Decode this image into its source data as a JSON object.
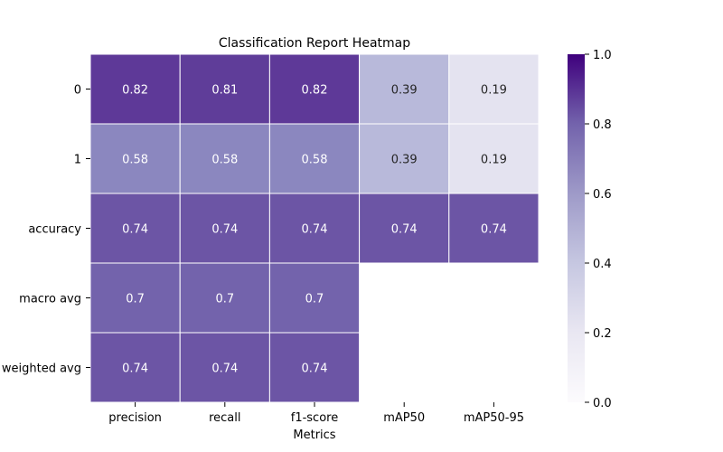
{
  "chart_data": {
    "type": "heatmap",
    "title": "Classification Report Heatmap",
    "xlabel": "Metrics",
    "ylabel": "",
    "columns": [
      "precision",
      "recall",
      "f1-score",
      "mAP50",
      "mAP50-95"
    ],
    "rows": [
      "0",
      "1",
      "accuracy",
      "macro avg",
      "weighted avg"
    ],
    "values": [
      [
        0.82,
        0.81,
        0.82,
        0.39,
        0.19
      ],
      [
        0.58,
        0.58,
        0.58,
        0.39,
        0.19
      ],
      [
        0.74,
        0.74,
        0.74,
        0.74,
        0.74
      ],
      [
        0.7,
        0.7,
        0.7,
        null,
        null
      ],
      [
        0.74,
        0.74,
        0.74,
        null,
        null
      ]
    ],
    "value_labels": [
      [
        "0.82",
        "0.81",
        "0.82",
        "0.39",
        "0.19"
      ],
      [
        "0.58",
        "0.58",
        "0.58",
        "0.39",
        "0.19"
      ],
      [
        "0.74",
        "0.74",
        "0.74",
        "0.74",
        "0.74"
      ],
      [
        "0.7",
        "0.7",
        "0.7",
        "",
        ""
      ],
      [
        "0.74",
        "0.74",
        "0.74",
        "",
        ""
      ]
    ],
    "colormap": "Purples",
    "vmin": 0,
    "vmax": 1,
    "colorbar": {
      "ticks": [
        0.0,
        0.2,
        0.4,
        0.6,
        0.8,
        1.0
      ],
      "tick_labels": [
        "0.0",
        "0.2",
        "0.4",
        "0.6",
        "0.8",
        "1.0"
      ]
    },
    "grid": true,
    "grid_color": "#ffffff",
    "dark_text_color": "#262626",
    "light_text_color": "#ffffff"
  }
}
